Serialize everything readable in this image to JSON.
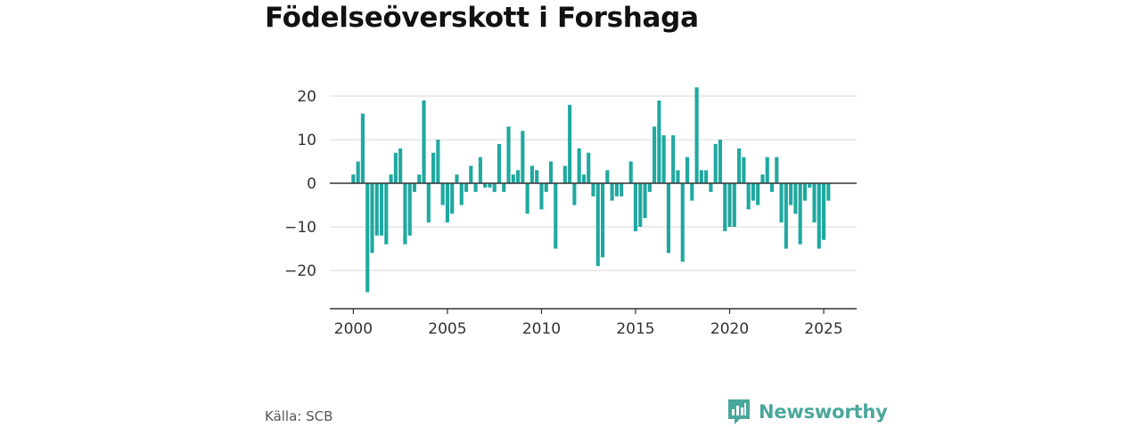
{
  "title": "Födelseöverskott i Forshaga",
  "source": "Källa: SCB",
  "logo": {
    "name": "Newsworthy",
    "icon": "bar-chart-logo-icon",
    "color": "#4aa79b"
  },
  "colors": {
    "bar": "#1fa8a0",
    "grid": "#d9d9d9",
    "axis": "#333333"
  },
  "chart_data": {
    "type": "bar",
    "title": "Födelseöverskott i Forshaga",
    "xlabel": "",
    "ylabel": "",
    "ylim": [
      -28,
      24
    ],
    "y_ticks": [
      20,
      10,
      0,
      -10,
      -20
    ],
    "y_tick_labels": [
      "20",
      "10",
      "0",
      "−10",
      "−20"
    ],
    "x_ticks": [
      2000,
      2005,
      2010,
      2015,
      2020,
      2025
    ],
    "x_tick_labels": [
      "2000",
      "2005",
      "2010",
      "2015",
      "2020",
      "2025"
    ],
    "x_range": [
      1998.75,
      2026.75
    ],
    "grid": true,
    "frequency": "quarterly",
    "start_period": "2000 Q1",
    "end_period": "2025 Q2",
    "values": [
      2,
      5,
      16,
      -25,
      -16,
      -12,
      -12,
      -14,
      2,
      7,
      8,
      -14,
      -12,
      -2,
      2,
      19,
      -9,
      7,
      10,
      -5,
      -9,
      -7,
      2,
      -5,
      -2,
      4,
      -2,
      6,
      -1,
      -1,
      -2,
      9,
      -2,
      13,
      2,
      3,
      12,
      -7,
      4,
      3,
      -6,
      -2,
      5,
      -15,
      0,
      4,
      18,
      -5,
      8,
      2,
      7,
      -3,
      -19,
      -17,
      3,
      -4,
      -3,
      -3,
      0,
      5,
      -11,
      -10,
      -8,
      -2,
      13,
      19,
      11,
      -16,
      11,
      3,
      -18,
      6,
      -4,
      22,
      3,
      3,
      -2,
      9,
      10,
      -11,
      -10,
      -10,
      8,
      6,
      -6,
      -4,
      -5,
      2,
      6,
      -2,
      6,
      -9,
      -15,
      -5,
      -7,
      -14,
      -4,
      -1,
      -9,
      -15,
      -13,
      -4
    ]
  }
}
